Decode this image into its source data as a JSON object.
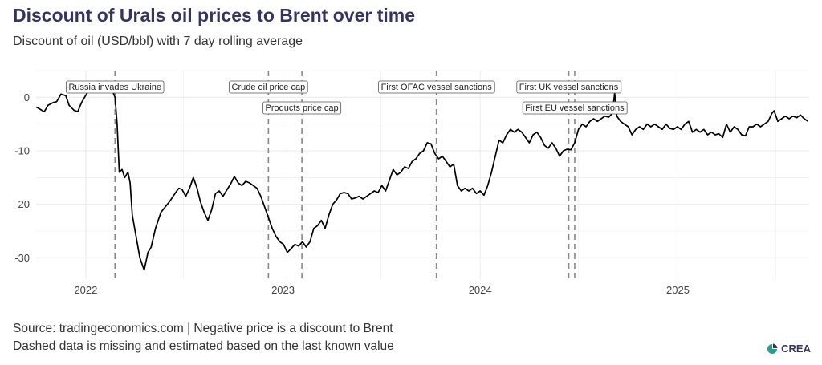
{
  "title": "Discount of Urals oil prices to Brent over time",
  "subtitle": "Discount of oil (USD/bbl) with 7 day rolling average",
  "source": {
    "line1": "Source: tradingeconomics.com | Negative price is a discount to Brent",
    "line2": "Dashed data is missing and estimated based on the last known value"
  },
  "logo": {
    "text": "CREA",
    "color": "#2a9d8f"
  },
  "colors": {
    "line": "#000000",
    "grid": "#ebebeb",
    "event_line": "#888888",
    "title": "#35345f"
  },
  "chart_data": {
    "type": "line",
    "title": "Discount of Urals oil prices to Brent over time",
    "xlabel": "",
    "ylabel": "",
    "x_ticks": [
      "2022",
      "2023",
      "2024",
      "2025"
    ],
    "y_ticks": [
      0,
      -10,
      -20,
      -30
    ],
    "xlim": [
      "2021-10-01",
      "2025-09-01"
    ],
    "ylim": [
      -34,
      5
    ],
    "grid": true,
    "series": [
      {
        "values": [
          [
            "2021-10-01",
            -1.8
          ],
          [
            "2021-10-08",
            -2.2
          ],
          [
            "2021-10-16",
            -2.7
          ],
          [
            "2021-10-23",
            -1.5
          ],
          [
            "2021-11-01",
            -1.0
          ],
          [
            "2021-11-08",
            -0.8
          ],
          [
            "2021-11-16",
            0.6
          ],
          [
            "2021-11-25",
            0.3
          ],
          [
            "2021-12-01",
            -1.5
          ],
          [
            "2021-12-10",
            -2.4
          ],
          [
            "2021-12-17",
            -2.7
          ],
          [
            "2021-12-24",
            -1.0
          ],
          [
            "2022-01-01",
            0.4
          ],
          [
            "2022-01-08",
            1.5
          ],
          [
            "2022-01-16",
            1.9
          ],
          [
            "2022-01-23",
            3.0
          ],
          [
            "2022-01-31",
            2.3
          ],
          [
            "2022-02-08",
            3.0
          ],
          [
            "2022-02-15",
            1.5
          ],
          [
            "2022-02-20",
            1.0
          ],
          [
            "2022-02-24",
            0.0
          ],
          [
            "2022-02-28",
            -5.0
          ],
          [
            "2022-03-04",
            -14.0
          ],
          [
            "2022-03-09",
            -13.5
          ],
          [
            "2022-03-14",
            -15.0
          ],
          [
            "2022-03-20",
            -14.0
          ],
          [
            "2022-03-24",
            -16.0
          ],
          [
            "2022-03-28",
            -22.0
          ],
          [
            "2022-04-04",
            -26.0
          ],
          [
            "2022-04-11",
            -30.0
          ],
          [
            "2022-04-19",
            -32.3
          ],
          [
            "2022-04-26",
            -29.0
          ],
          [
            "2022-05-02",
            -28.0
          ],
          [
            "2022-05-10",
            -24.5
          ],
          [
            "2022-05-20",
            -21.5
          ],
          [
            "2022-05-28",
            -20.5
          ],
          [
            "2022-06-05",
            -19.5
          ],
          [
            "2022-06-15",
            -18.0
          ],
          [
            "2022-06-22",
            -17.0
          ],
          [
            "2022-06-28",
            -17.2
          ],
          [
            "2022-07-05",
            -18.5
          ],
          [
            "2022-07-12",
            -17.0
          ],
          [
            "2022-07-19",
            -15.0
          ],
          [
            "2022-07-26",
            -17.0
          ],
          [
            "2022-08-01",
            -19.5
          ],
          [
            "2022-08-08",
            -21.5
          ],
          [
            "2022-08-15",
            -23.0
          ],
          [
            "2022-08-22",
            -21.0
          ],
          [
            "2022-08-29",
            -18.0
          ],
          [
            "2022-09-05",
            -17.5
          ],
          [
            "2022-09-12",
            -18.5
          ],
          [
            "2022-09-19",
            -17.3
          ],
          [
            "2022-09-26",
            -16.2
          ],
          [
            "2022-10-03",
            -14.8
          ],
          [
            "2022-10-10",
            -16.0
          ],
          [
            "2022-10-17",
            -16.5
          ],
          [
            "2022-10-24",
            -15.7
          ],
          [
            "2022-10-31",
            -16.0
          ],
          [
            "2022-11-07",
            -16.5
          ],
          [
            "2022-11-14",
            -17.0
          ],
          [
            "2022-11-21",
            -18.5
          ],
          [
            "2022-11-28",
            -20.5
          ],
          [
            "2022-12-05",
            -22.5
          ],
          [
            "2022-12-12",
            -24.5
          ],
          [
            "2022-12-19",
            -26.0
          ],
          [
            "2022-12-26",
            -27.0
          ],
          [
            "2023-01-02",
            -27.5
          ],
          [
            "2023-01-09",
            -29.0
          ],
          [
            "2023-01-16",
            -28.3
          ],
          [
            "2023-01-23",
            -27.5
          ],
          [
            "2023-01-30",
            -27.8
          ],
          [
            "2023-02-06",
            -27.0
          ],
          [
            "2023-02-13",
            -28.0
          ],
          [
            "2023-02-20",
            -27.0
          ],
          [
            "2023-02-27",
            -24.5
          ],
          [
            "2023-03-06",
            -24.0
          ],
          [
            "2023-03-13",
            -23.0
          ],
          [
            "2023-03-20",
            -24.5
          ],
          [
            "2023-03-27",
            -22.0
          ],
          [
            "2023-04-03",
            -20.0
          ],
          [
            "2023-04-10",
            -19.2
          ],
          [
            "2023-04-17",
            -18.0
          ],
          [
            "2023-04-24",
            -17.8
          ],
          [
            "2023-05-01",
            -18.0
          ],
          [
            "2023-05-08",
            -19.0
          ],
          [
            "2023-05-15",
            -18.8
          ],
          [
            "2023-05-22",
            -18.5
          ],
          [
            "2023-05-29",
            -19.0
          ],
          [
            "2023-06-05",
            -18.5
          ],
          [
            "2023-06-12",
            -18.0
          ],
          [
            "2023-06-19",
            -17.5
          ],
          [
            "2023-06-26",
            -17.8
          ],
          [
            "2023-07-03",
            -16.5
          ],
          [
            "2023-07-10",
            -17.5
          ],
          [
            "2023-07-17",
            -15.5
          ],
          [
            "2023-07-24",
            -13.5
          ],
          [
            "2023-07-31",
            -14.5
          ],
          [
            "2023-08-07",
            -14.0
          ],
          [
            "2023-08-14",
            -13.0
          ],
          [
            "2023-08-21",
            -13.3
          ],
          [
            "2023-08-28",
            -12.0
          ],
          [
            "2023-09-04",
            -11.5
          ],
          [
            "2023-09-11",
            -10.5
          ],
          [
            "2023-09-18",
            -10.0
          ],
          [
            "2023-09-25",
            -8.5
          ],
          [
            "2023-10-02",
            -8.7
          ],
          [
            "2023-10-09",
            -10.5
          ],
          [
            "2023-10-16",
            -11.5
          ],
          [
            "2023-10-23",
            -11.0
          ],
          [
            "2023-10-30",
            -12.0
          ],
          [
            "2023-11-06",
            -13.0
          ],
          [
            "2023-11-13",
            -12.5
          ],
          [
            "2023-11-20",
            -16.5
          ],
          [
            "2023-11-27",
            -17.5
          ],
          [
            "2023-12-04",
            -17.0
          ],
          [
            "2023-12-11",
            -17.5
          ],
          [
            "2023-12-18",
            -17.0
          ],
          [
            "2023-12-25",
            -18.0
          ],
          [
            "2024-01-01",
            -17.5
          ],
          [
            "2024-01-08",
            -18.3
          ],
          [
            "2024-01-15",
            -16.5
          ],
          [
            "2024-01-22",
            -14.0
          ],
          [
            "2024-01-29",
            -11.0
          ],
          [
            "2024-02-05",
            -8.0
          ],
          [
            "2024-02-12",
            -8.5
          ],
          [
            "2024-02-19",
            -7.0
          ],
          [
            "2024-02-26",
            -6.0
          ],
          [
            "2024-03-04",
            -6.5
          ],
          [
            "2024-03-11",
            -6.0
          ],
          [
            "2024-03-18",
            -6.5
          ],
          [
            "2024-03-25",
            -7.5
          ],
          [
            "2024-04-01",
            -8.5
          ],
          [
            "2024-04-08",
            -7.0
          ],
          [
            "2024-04-15",
            -6.5
          ],
          [
            "2024-04-22",
            -7.5
          ],
          [
            "2024-04-29",
            -9.0
          ],
          [
            "2024-05-06",
            -9.5
          ],
          [
            "2024-05-13",
            -8.5
          ],
          [
            "2024-05-20",
            -9.5
          ],
          [
            "2024-05-27",
            -11.0
          ],
          [
            "2024-06-03",
            -10.0
          ],
          [
            "2024-06-10",
            -9.7
          ],
          [
            "2024-06-17",
            -9.8
          ],
          [
            "2024-06-24",
            -8.5
          ],
          [
            "2024-07-01",
            -6.0
          ],
          [
            "2024-07-08",
            -5.0
          ],
          [
            "2024-07-15",
            -5.5
          ],
          [
            "2024-07-22",
            -4.5
          ],
          [
            "2024-07-29",
            -4.0
          ],
          [
            "2024-08-05",
            -4.5
          ],
          [
            "2024-08-12",
            -4.0
          ],
          [
            "2024-08-19",
            -3.5
          ],
          [
            "2024-08-26",
            -3.7
          ],
          [
            "2024-09-02",
            -3.0
          ],
          [
            "2024-09-06",
            0.8
          ],
          [
            "2024-09-10",
            -3.5
          ],
          [
            "2024-09-17",
            -4.5
          ],
          [
            "2024-09-24",
            -5.0
          ],
          [
            "2024-10-01",
            -5.5
          ],
          [
            "2024-10-08",
            -7.0
          ],
          [
            "2024-10-15",
            -6.0
          ],
          [
            "2024-10-22",
            -5.5
          ],
          [
            "2024-10-29",
            -6.0
          ],
          [
            "2024-11-05",
            -5.0
          ],
          [
            "2024-11-12",
            -5.5
          ],
          [
            "2024-11-19",
            -5.0
          ],
          [
            "2024-11-26",
            -5.5
          ],
          [
            "2024-12-03",
            -6.0
          ],
          [
            "2024-12-10",
            -5.0
          ],
          [
            "2024-12-17",
            -5.8
          ],
          [
            "2024-12-24",
            -6.0
          ],
          [
            "2024-12-31",
            -5.5
          ],
          [
            "2025-01-07",
            -6.0
          ],
          [
            "2025-01-14",
            -5.0
          ],
          [
            "2025-01-21",
            -4.5
          ],
          [
            "2025-01-28",
            -6.5
          ],
          [
            "2025-02-04",
            -6.0
          ],
          [
            "2025-02-11",
            -6.5
          ],
          [
            "2025-02-18",
            -6.0
          ],
          [
            "2025-02-25",
            -7.0
          ],
          [
            "2025-03-04",
            -6.5
          ],
          [
            "2025-03-11",
            -7.0
          ],
          [
            "2025-03-18",
            -6.8
          ],
          [
            "2025-03-25",
            -7.5
          ],
          [
            "2025-04-01",
            -5.0
          ],
          [
            "2025-04-08",
            -6.5
          ],
          [
            "2025-04-15",
            -5.5
          ],
          [
            "2025-04-22",
            -6.0
          ],
          [
            "2025-04-29",
            -7.0
          ],
          [
            "2025-05-06",
            -7.2
          ],
          [
            "2025-05-13",
            -5.5
          ],
          [
            "2025-05-20",
            -5.5
          ],
          [
            "2025-05-27",
            -5.0
          ],
          [
            "2025-06-03",
            -5.5
          ],
          [
            "2025-06-10",
            -5.0
          ],
          [
            "2025-06-17",
            -4.5
          ],
          [
            "2025-06-24",
            -3.0
          ],
          [
            "2025-06-28",
            -2.5
          ],
          [
            "2025-07-05",
            -4.5
          ],
          [
            "2025-07-12",
            -4.0
          ],
          [
            "2025-07-19",
            -3.5
          ],
          [
            "2025-07-26",
            -4.0
          ],
          [
            "2025-08-02",
            -3.5
          ],
          [
            "2025-08-09",
            -3.8
          ],
          [
            "2025-08-16",
            -3.3
          ],
          [
            "2025-08-23",
            -4.0
          ],
          [
            "2025-08-30",
            -4.5
          ]
        ]
      }
    ],
    "annotations": [
      {
        "label": "Russia invades Ukraine",
        "date": "2022-02-24"
      },
      {
        "label": "Crude oil price cap",
        "date": "2022-12-05"
      },
      {
        "label": "Products price cap",
        "date": "2023-02-05"
      },
      {
        "label": "First OFAC vessel sanctions",
        "date": "2023-10-12"
      },
      {
        "label": "First UK vessel sanctions",
        "date": "2024-06-13"
      },
      {
        "label": "First EU vessel sanctions",
        "date": "2024-06-24"
      }
    ]
  }
}
